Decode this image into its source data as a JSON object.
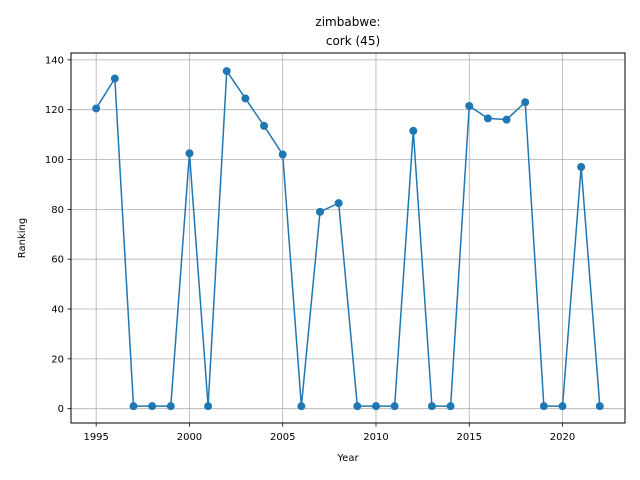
{
  "chart_data": {
    "type": "line",
    "title_line1": "zimbabwe:",
    "title_line2": "cork (45)",
    "xlabel": "Year",
    "ylabel": "Ranking",
    "xlim": [
      1993.65,
      2023.35
    ],
    "ylim": [
      -5.75,
      142.75
    ],
    "xticks": [
      1995,
      2000,
      2005,
      2010,
      2015,
      2020
    ],
    "yticks": [
      0,
      20,
      40,
      60,
      80,
      100,
      120,
      140
    ],
    "grid": true,
    "color": "#1f77b4",
    "series": [
      {
        "x": [
          1995,
          1996,
          1997,
          1998,
          1999,
          2000,
          2001,
          2002,
          2003,
          2004,
          2005,
          2006,
          2007,
          2008,
          2009,
          2010,
          2011,
          2012,
          2013,
          2014,
          2015,
          2016,
          2017,
          2018,
          2019,
          2020,
          2021,
          2022
        ],
        "y": [
          120.5,
          132.5,
          1,
          1,
          1,
          102.5,
          1,
          135.5,
          124.5,
          113.5,
          102,
          1,
          79,
          82.5,
          1,
          1,
          1,
          111.5,
          1,
          1,
          121.5,
          116.5,
          116,
          123,
          1,
          1,
          97,
          1
        ]
      }
    ]
  }
}
